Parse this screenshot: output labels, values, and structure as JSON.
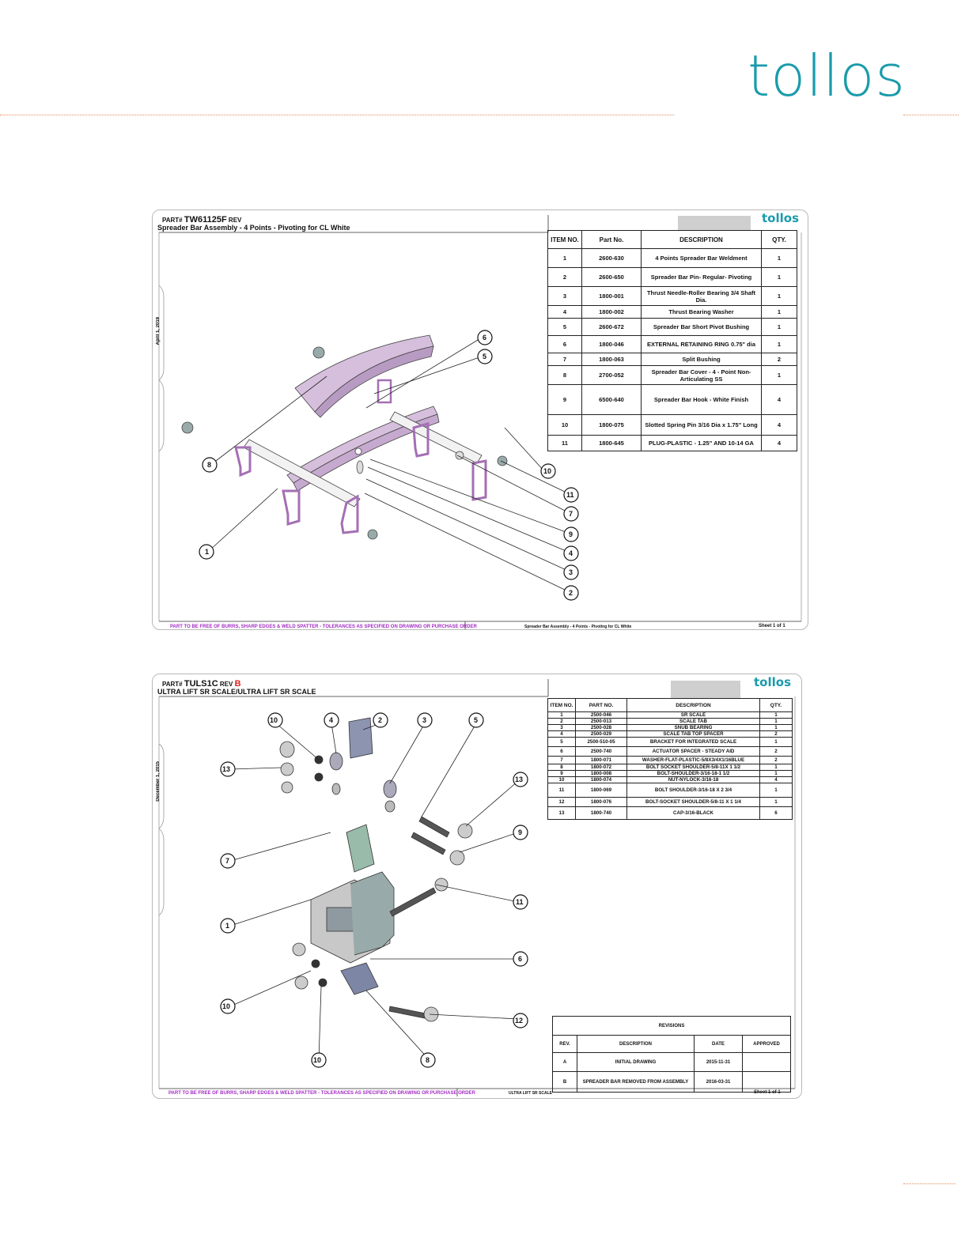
{
  "page": {
    "brand": "tollos",
    "colors": {
      "brand": "#1a9bab",
      "dots": "#e98b54",
      "purple": "#a32cc4",
      "part": "#d6bfdc"
    }
  },
  "sheet1": {
    "part_label": "PART#",
    "part_number": "TW61125F",
    "rev_label": "REV",
    "description": "Spreader Bar Assembly - 4 Points - Pivoting for CL White",
    "logo": "tollos",
    "side_date": "April 1, 2019",
    "footer_left": "PART TO BE FREE OF BURRS, SHARP EDGES & WELD SPATTER - TOLERANCES AS SPECIFIED ON DRAWING OR PURCHASE ORDER",
    "footer_mid": "Spreader Bar Assembly - 4 Points - Pivoting for CL White",
    "footer_sheet": "Sheet 1 of 1",
    "bom": {
      "headers": [
        "ITEM NO.",
        "Part No.",
        "DESCRIPTION",
        "QTY."
      ],
      "rows": [
        {
          "item": "1",
          "part": "2600-630",
          "desc": "4 Points Spreader Bar Weldment",
          "qty": "1"
        },
        {
          "item": "2",
          "part": "2600-650",
          "desc": "Spreader Bar Pin- Regular- Pivoting",
          "qty": "1"
        },
        {
          "item": "3",
          "part": "1800-001",
          "desc": "Thrust Needle-Roller Bearing 3/4 Shaft Dia.",
          "qty": "1"
        },
        {
          "item": "4",
          "part": "1800-002",
          "desc": "Thrust Bearing Washer",
          "qty": "1"
        },
        {
          "item": "5",
          "part": "2600-672",
          "desc": "Spreader Bar Short Pivot Bushing",
          "qty": "1"
        },
        {
          "item": "6",
          "part": "1800-046",
          "desc": "EXTERNAL RETAINING RING 0.75\" dia",
          "qty": "1"
        },
        {
          "item": "7",
          "part": "1800-063",
          "desc": "Split Bushing",
          "qty": "2"
        },
        {
          "item": "8",
          "part": "2700-052",
          "desc": "Spreader Bar Cover - 4 - Point Non-Articulating SS",
          "qty": "1"
        },
        {
          "item": "9",
          "part": "6500-640",
          "desc": "Spreader Bar Hook - White Finish",
          "qty": "4"
        },
        {
          "item": "10",
          "part": "1800-075",
          "desc": "Slotted Spring Pin 3/16 Dia x 1.75\" Long",
          "qty": "4"
        },
        {
          "item": "11",
          "part": "1800-645",
          "desc": "PLUG-PLASTIC - 1.25\" AND 10-14 GA",
          "qty": "4"
        }
      ]
    },
    "balloons": [
      "1",
      "2",
      "3",
      "4",
      "5",
      "6",
      "7",
      "8",
      "9",
      "10",
      "11"
    ]
  },
  "sheet2": {
    "part_label": "PART#",
    "part_number": "TULS1C",
    "rev_label": "REV",
    "rev": "B",
    "description": "ULTRA LIFT SR SCALE/ULTRA LIFT SR SCALE",
    "logo": "tollos",
    "side_date": "December 1, 2015",
    "footer_left": "PART TO BE FREE OF BURRS, SHARP EDGES & WELD SPATTER - TOLERANCES AS SPECIFIED ON DRAWING OR PURCHASE ORDER",
    "footer_mid": "ULTRA LIFT SR SCALE",
    "footer_sheet": "Sheet 1 of 1",
    "bom": {
      "headers": [
        "ITEM NO.",
        "PART NO.",
        "DESCRIPTION",
        "QTY."
      ],
      "rows": [
        {
          "item": "1",
          "part": "2500-046",
          "desc": "SR SCALE",
          "qty": "1"
        },
        {
          "item": "2",
          "part": "2500-013",
          "desc": "SCALE TAB",
          "qty": "1"
        },
        {
          "item": "3",
          "part": "2500-028",
          "desc": "SNUB BEARING",
          "qty": "1"
        },
        {
          "item": "4",
          "part": "2500-029",
          "desc": "SCALE TAB TOP SPACER",
          "qty": "2"
        },
        {
          "item": "5",
          "part": "2500-510-05",
          "desc": "BRACKET FOR INTEGRATED SCALE",
          "qty": "1"
        },
        {
          "item": "6",
          "part": "2500-740",
          "desc": "ACTUATOR SPACER - STEADY AID",
          "qty": "2"
        },
        {
          "item": "7",
          "part": "1800-071",
          "desc": "WASHER-FLAT-PLASTIC-5/8X3/4X1/16BLUE",
          "qty": "2"
        },
        {
          "item": "8",
          "part": "1800-072",
          "desc": "BOLT SOCKET SHOULDER-5/8-11X 1 1/2",
          "qty": "1"
        },
        {
          "item": "9",
          "part": "1800-008",
          "desc": "BOLT-SHOULDER-3/16-18-1 1/2",
          "qty": "1"
        },
        {
          "item": "10",
          "part": "1800-074",
          "desc": "NUT-NYLOCK-3/16-18",
          "qty": "4"
        },
        {
          "item": "11",
          "part": "1800-069",
          "desc": "BOLT SHOULDER-3/16-18 X 2 3/4",
          "qty": "1"
        },
        {
          "item": "12",
          "part": "1800-076",
          "desc": "BOLT-SOCKET SHOULDER-5/8-11 X 1 1/4",
          "qty": "1"
        },
        {
          "item": "13",
          "part": "1800-740",
          "desc": "CAP-3/16-BLACK",
          "qty": "6"
        }
      ]
    },
    "revisions": {
      "title": "REVISIONS",
      "headers": [
        "REV.",
        "DESCRIPTION",
        "DATE",
        "APPROVED"
      ],
      "rows": [
        {
          "rev": "A",
          "desc": "INITIAL DRAWING",
          "date": "2015-11-31",
          "approved": ""
        },
        {
          "rev": "B",
          "desc": "SPREADER BAR REMOVED FROM ASSEMBLY",
          "date": "2016-03-31",
          "approved": ""
        }
      ]
    },
    "balloons": [
      "1",
      "2",
      "3",
      "4",
      "5",
      "6",
      "7",
      "8",
      "9",
      "10",
      "11",
      "12",
      "13"
    ]
  }
}
